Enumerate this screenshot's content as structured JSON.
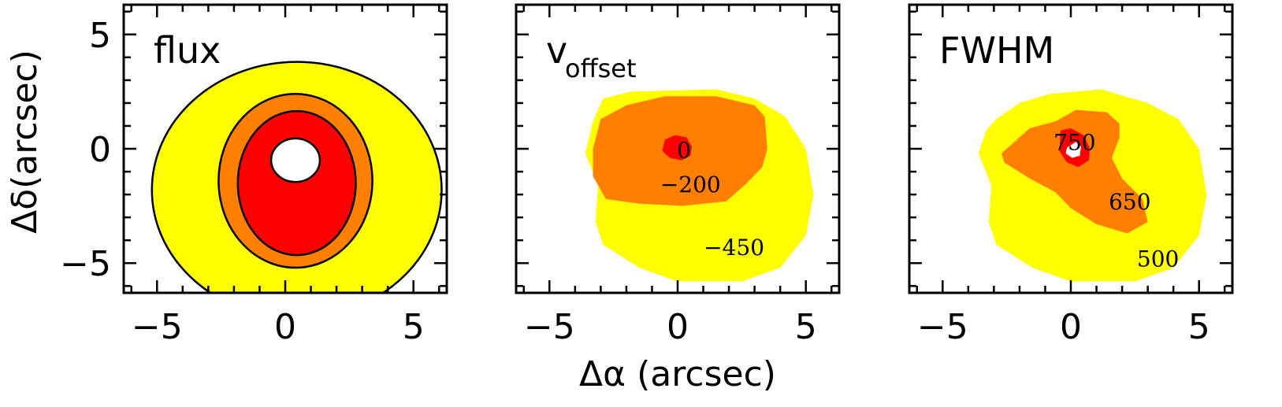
{
  "chart_data": {
    "type": "heatmap",
    "xlabel": "Δα (arcsec)",
    "ylabel": "Δδ(arcsec)",
    "xlim": [
      -6.3,
      6.3
    ],
    "ylim": [
      -6.3,
      6.3
    ],
    "xticks": [
      -5,
      0,
      5
    ],
    "yticks": [
      -5,
      0,
      5
    ],
    "colors": {
      "yellow": "#ffff00",
      "orange": "#ff8000",
      "red": "#ff0000",
      "white": "#ffffff",
      "outline": "#000000"
    },
    "panels": [
      {
        "title": "flux",
        "title_sub": "",
        "shape": "ellipses",
        "levels": [
          {
            "fill": "#ffff00",
            "cx": 0.45,
            "cy": -1.8,
            "rx": 5.65,
            "ry": 5.6
          },
          {
            "fill": "#ff8000",
            "cx": 0.4,
            "cy": -1.4,
            "rx": 3.0,
            "ry": 3.8
          },
          {
            "fill": "#ff0000",
            "cx": 0.45,
            "cy": -1.5,
            "rx": 2.3,
            "ry": 3.15
          },
          {
            "fill": "#ffffff",
            "cx": 0.4,
            "cy": -0.5,
            "rx": 0.95,
            "ry": 0.95
          }
        ],
        "labels": []
      },
      {
        "title": "v",
        "title_sub": "offset",
        "shape": "regions",
        "regions": [
          {
            "fill": "#ffff00",
            "points": [
              [
                -2.9,
                2.2
              ],
              [
                -1.8,
                2.5
              ],
              [
                1.5,
                2.6
              ],
              [
                3.0,
                2.2
              ],
              [
                4.2,
                1.4
              ],
              [
                5.0,
                0
              ],
              [
                5.3,
                -2
              ],
              [
                5.0,
                -3.8
              ],
              [
                4.0,
                -5.2
              ],
              [
                2.5,
                -5.8
              ],
              [
                0,
                -5.8
              ],
              [
                -1.5,
                -5.2
              ],
              [
                -2.9,
                -4.2
              ],
              [
                -3.2,
                -3.2
              ],
              [
                -3.1,
                -1.6
              ],
              [
                -3.6,
                -0.2
              ],
              [
                -3.3,
                1.2
              ]
            ]
          },
          {
            "fill": "#ff8000",
            "points": [
              [
                -3.0,
                1.3
              ],
              [
                -2.0,
                1.9
              ],
              [
                -0.5,
                2.3
              ],
              [
                1.5,
                2.3
              ],
              [
                3.0,
                1.9
              ],
              [
                3.4,
                1.4
              ],
              [
                3.5,
                0
              ],
              [
                3.3,
                -0.8
              ],
              [
                2.7,
                -1.5
              ],
              [
                1.9,
                -2.3
              ],
              [
                0.2,
                -2.5
              ],
              [
                -1.5,
                -2.4
              ],
              [
                -2.8,
                -2.2
              ],
              [
                -3.3,
                -1.2
              ],
              [
                -3.3,
                0
              ]
            ]
          },
          {
            "fill": "#ff0000",
            "points": [
              [
                -0.5,
                0.4
              ],
              [
                -0.1,
                0.6
              ],
              [
                0.35,
                0.5
              ],
              [
                0.55,
                0.1
              ],
              [
                0.5,
                -0.3
              ],
              [
                0.15,
                -0.5
              ],
              [
                -0.3,
                -0.4
              ],
              [
                -0.6,
                -0.1
              ]
            ]
          }
        ],
        "labels": [
          {
            "text": "0",
            "x": 0.25,
            "y": -0.05
          },
          {
            "text": "−200",
            "x": 0.5,
            "y": -1.55
          },
          {
            "text": "−450",
            "x": 2.2,
            "y": -4.3
          }
        ]
      },
      {
        "title": "FWHM",
        "title_sub": "",
        "shape": "regions",
        "regions": [
          {
            "fill": "#ffff00",
            "points": [
              [
                -2.9,
                1.3
              ],
              [
                -2.0,
                2.0
              ],
              [
                -0.8,
                2.4
              ],
              [
                1.2,
                2.6
              ],
              [
                3.0,
                2.0
              ],
              [
                4.2,
                1.3
              ],
              [
                5.0,
                0
              ],
              [
                5.3,
                -2
              ],
              [
                5.0,
                -3.8
              ],
              [
                4.0,
                -5.2
              ],
              [
                2.5,
                -5.8
              ],
              [
                0,
                -5.8
              ],
              [
                -1.5,
                -5.2
              ],
              [
                -2.9,
                -4.2
              ],
              [
                -3.2,
                -3.2
              ],
              [
                -3.1,
                -1.6
              ],
              [
                -3.6,
                -0.2
              ],
              [
                -3.3,
                0.8
              ]
            ]
          },
          {
            "fill": "#ff8000",
            "points": [
              [
                -2.2,
                0.3
              ],
              [
                -1.6,
                0.9
              ],
              [
                -0.6,
                1.2
              ],
              [
                0.2,
                1.7
              ],
              [
                1.4,
                1.6
              ],
              [
                1.9,
                1.1
              ],
              [
                1.9,
                0.5
              ],
              [
                1.6,
                -0.4
              ],
              [
                2.0,
                -1.3
              ],
              [
                2.8,
                -2.2
              ],
              [
                3.0,
                -3.2
              ],
              [
                2.2,
                -3.7
              ],
              [
                1.0,
                -3.3
              ],
              [
                0.0,
                -2.6
              ],
              [
                -0.6,
                -1.9
              ],
              [
                -1.6,
                -1.3
              ],
              [
                -2.6,
                -0.6
              ],
              [
                -2.7,
                -0.2
              ]
            ]
          },
          {
            "fill": "#ff0000",
            "points": [
              [
                -0.4,
                0.8
              ],
              [
                0.0,
                0.9
              ],
              [
                0.5,
                0.6
              ],
              [
                0.75,
                0.0
              ],
              [
                0.7,
                -0.5
              ],
              [
                0.3,
                -0.8
              ],
              [
                -0.15,
                -0.6
              ],
              [
                -0.45,
                -0.1
              ]
            ]
          },
          {
            "fill": "#ffffff",
            "points": [
              [
                -0.15,
                0.05
              ],
              [
                0.2,
                0.3
              ],
              [
                0.4,
                0.1
              ],
              [
                0.35,
                -0.3
              ],
              [
                0.05,
                -0.4
              ],
              [
                -0.2,
                -0.2
              ]
            ]
          }
        ],
        "labels": [
          {
            "text": "750",
            "x": 0.15,
            "y": 0.3
          },
          {
            "text": "650",
            "x": 2.3,
            "y": -2.3
          },
          {
            "text": "500",
            "x": 3.4,
            "y": -4.8
          }
        ]
      }
    ]
  }
}
